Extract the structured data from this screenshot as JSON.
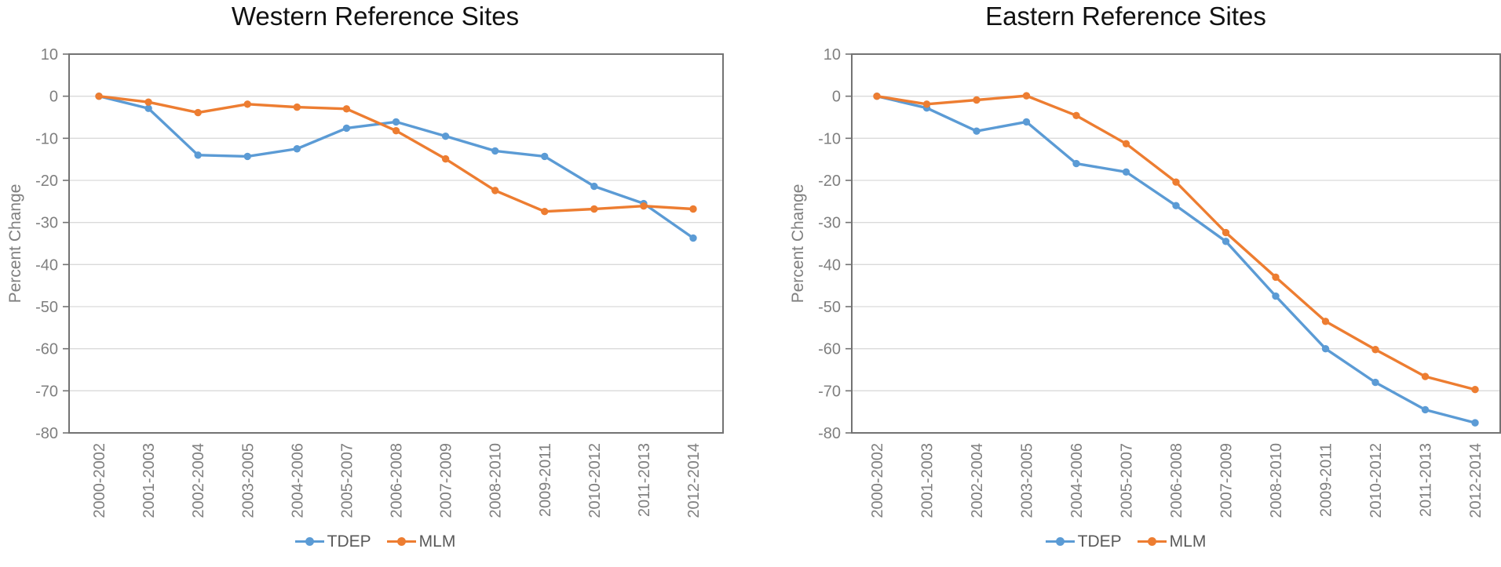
{
  "colors": {
    "tdep": "#5B9BD5",
    "mlm": "#ED7D31",
    "axis_box": "#737373",
    "gridline": "#DADADA",
    "tick_text": "#7F7F7F",
    "axis_title_text": "#7F7F7F",
    "chart_title_text": "#111111",
    "legend_text": "#595959"
  },
  "legend": {
    "items": [
      {
        "label": "TDEP",
        "color": "#5B9BD5"
      },
      {
        "label": "MLM",
        "color": "#ED7D31"
      }
    ]
  },
  "chart_data": [
    {
      "type": "line",
      "title": "Western Reference Sites",
      "ylabel": "Percent Change",
      "xlabel": "",
      "ylim": [
        -80,
        10
      ],
      "yticks": [
        10,
        0,
        -10,
        -20,
        -30,
        -40,
        -50,
        -60,
        -70,
        -80
      ],
      "grid": true,
      "legend_position": "bottom",
      "categories": [
        "2000-2002",
        "2001-2003",
        "2002-2004",
        "2003-2005",
        "2004-2006",
        "2005-2007",
        "2006-2008",
        "2007-2009",
        "2008-2010",
        "2009-2011",
        "2010-2012",
        "2011-2013",
        "2012-2014"
      ],
      "series": [
        {
          "name": "TDEP",
          "color": "#5B9BD5",
          "values": [
            0,
            -2.9,
            -14,
            -14.3,
            -12.5,
            -7.6,
            -6.1,
            -9.5,
            -13,
            -14.3,
            -21.4,
            -25.5,
            -33.7
          ]
        },
        {
          "name": "MLM",
          "color": "#ED7D31",
          "values": [
            0,
            -1.4,
            -3.9,
            -1.9,
            -2.6,
            -3,
            -8.2,
            -14.9,
            -22.4,
            -27.4,
            -26.8,
            -26.1,
            -26.8
          ]
        }
      ]
    },
    {
      "type": "line",
      "title": "Eastern Reference Sites",
      "ylabel": "Percent Change",
      "xlabel": "",
      "ylim": [
        -80,
        10
      ],
      "yticks": [
        10,
        0,
        -10,
        -20,
        -30,
        -40,
        -50,
        -60,
        -70,
        -80
      ],
      "grid": true,
      "legend_position": "bottom",
      "categories": [
        "2000-2002",
        "2001-2003",
        "2002-2004",
        "2003-2005",
        "2004-2006",
        "2005-2007",
        "2006-2008",
        "2007-2009",
        "2008-2010",
        "2009-2011",
        "2010-2012",
        "2011-2013",
        "2012-2014"
      ],
      "series": [
        {
          "name": "TDEP",
          "color": "#5B9BD5",
          "values": [
            0,
            -2.8,
            -8.3,
            -6.1,
            -16,
            -18,
            -26,
            -34.5,
            -47.5,
            -60,
            -68,
            -74.5,
            -77.6
          ]
        },
        {
          "name": "MLM",
          "color": "#ED7D31",
          "values": [
            0,
            -1.9,
            -0.9,
            0.1,
            -4.6,
            -11.3,
            -20.4,
            -32.4,
            -43,
            -53.5,
            -60.2,
            -66.6,
            -69.7
          ]
        }
      ]
    }
  ]
}
